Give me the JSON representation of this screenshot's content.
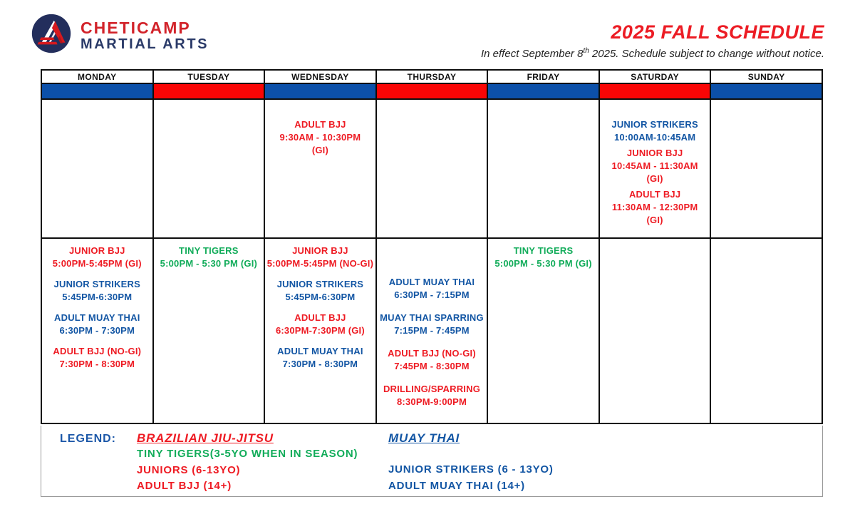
{
  "brand": {
    "line1": "CHETICAMP",
    "line2": "MARTIAL ARTS"
  },
  "title_block": {
    "title": "2025 FALL SCHEDULE",
    "subtitle_prefix": "In effect September 8",
    "subtitle_sup": "th",
    "subtitle_suffix": " 2025. Schedule subject to change without notice."
  },
  "colors": {
    "red": "#EE1B23",
    "blue": "#1356A4",
    "green": "#12AC5A",
    "band_blue": "#0C50A9",
    "band_red": "#F90505",
    "legend_blue": "#1B57A8"
  },
  "schedule": {
    "days": [
      {
        "label": "MONDAY",
        "band": "band_blue",
        "morning": [],
        "evening": [
          {
            "color": "red",
            "lines": [
              "JUNIOR BJJ",
              "5:00PM-5:45PM (GI)"
            ]
          },
          {
            "color": "blue",
            "lines": [
              "JUNIOR STRIKERS",
              "5:45PM-6:30PM"
            ]
          },
          {
            "color": "blue",
            "lines": [
              "ADULT MUAY THAI",
              "6:30PM - 7:30PM"
            ]
          },
          {
            "color": "red",
            "lines": [
              "ADULT BJJ (NO-GI)",
              "7:30PM - 8:30PM"
            ]
          }
        ]
      },
      {
        "label": "TUESDAY",
        "band": "band_red",
        "morning": [],
        "evening": [
          {
            "color": "green",
            "lines": [
              "TINY TIGERS",
              "5:00PM - 5:30 PM (GI)"
            ]
          }
        ]
      },
      {
        "label": "WEDNESDAY",
        "band": "band_blue",
        "morning": [
          {
            "color": "red",
            "lines": [
              "ADULT BJJ",
              "9:30AM - 10:30PM",
              "(GI)"
            ]
          }
        ],
        "evening": [
          {
            "color": "red",
            "lines": [
              "JUNIOR BJJ",
              "5:00PM-5:45PM (NO-GI)"
            ]
          },
          {
            "color": "blue",
            "lines": [
              "JUNIOR STRIKERS",
              "5:45PM-6:30PM"
            ]
          },
          {
            "color": "red",
            "lines": [
              "ADULT BJJ",
              "6:30PM-7:30PM (GI)"
            ]
          },
          {
            "color": "blue",
            "lines": [
              "ADULT MUAY THAI",
              "7:30PM - 8:30PM"
            ]
          }
        ]
      },
      {
        "label": "THURSDAY",
        "band": "band_red",
        "morning": [],
        "evening_offset": true,
        "evening": [
          {
            "color": "blue",
            "lines": [
              "ADULT MUAY THAI",
              "6:30PM - 7:15PM"
            ]
          },
          {
            "color": "blue",
            "lines": [
              "MUAY THAI SPARRING",
              "7:15PM - 7:45PM"
            ]
          },
          {
            "color": "red",
            "lines": [
              "ADULT BJJ (NO-GI)",
              "7:45PM - 8:30PM"
            ]
          },
          {
            "color": "red",
            "lines": [
              "DRILLING/SPARRING",
              "8:30PM-9:00PM"
            ]
          }
        ]
      },
      {
        "label": "FRIDAY",
        "band": "band_blue",
        "morning": [],
        "evening": [
          {
            "color": "green",
            "lines": [
              "TINY TIGERS",
              "5:00PM - 5:30 PM (GI)"
            ]
          }
        ]
      },
      {
        "label": "SATURDAY",
        "band": "band_red",
        "morning": [
          {
            "color": "blue",
            "lines": [
              "JUNIOR STRIKERS",
              "10:00AM-10:45AM"
            ]
          },
          {
            "color": "red",
            "lines": [
              "JUNIOR BJJ",
              "10:45AM - 11:30AM",
              "(GI)"
            ]
          },
          {
            "color": "red",
            "lines": [
              "ADULT BJJ",
              "11:30AM - 12:30PM",
              "(GI)"
            ]
          }
        ],
        "evening": []
      },
      {
        "label": "SUNDAY",
        "band": "band_blue",
        "morning": [],
        "evening": []
      }
    ]
  },
  "legend": {
    "label": "LEGEND:",
    "bjj": {
      "heading": "BRAZILIAN JIU-JITSU",
      "items": [
        {
          "text": "TINY TIGERS(3-5YO WHEN IN SEASON)",
          "color": "green"
        },
        {
          "text": "JUNIORS (6-13YO)",
          "color": "red"
        },
        {
          "text": "ADULT BJJ (14+)",
          "color": "red"
        }
      ]
    },
    "muaythai": {
      "heading": "MUAY THAI",
      "items": [
        {
          "text": "JUNIOR STRIKERS (6 - 13YO)",
          "color": "blue"
        },
        {
          "text": "ADULT MUAY THAI (14+)",
          "color": "blue"
        }
      ]
    }
  }
}
